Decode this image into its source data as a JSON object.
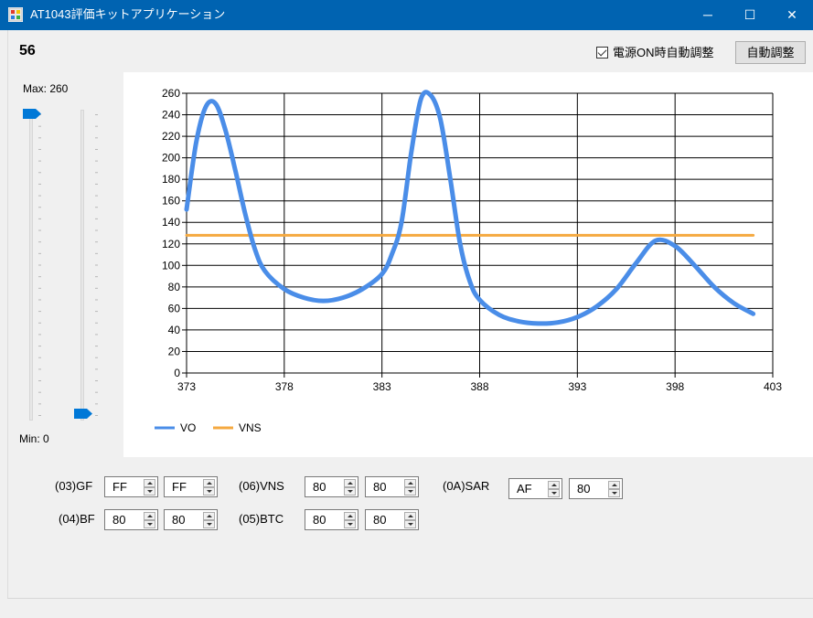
{
  "window": {
    "title": "AT1043評価キットアプリケーション",
    "minimize_glyph": "─",
    "maximize_glyph": "☐",
    "close_glyph": "✕"
  },
  "top_value": "56",
  "auto_adjust_on_power": {
    "label": "電源ON時自動調整",
    "checked": true
  },
  "auto_adjust_button": "自動調整",
  "slider_panel": {
    "max_label": "Max: 260",
    "min_label": "Min: 0",
    "upper_slider_value": 260,
    "lower_slider_value": 0
  },
  "chart_data": {
    "type": "line",
    "xlim": [
      373,
      403
    ],
    "ylim": [
      0,
      260
    ],
    "x_ticks": [
      "373",
      "378",
      "383",
      "388",
      "393",
      "398",
      "403"
    ],
    "y_ticks": [
      "0",
      "20",
      "40",
      "60",
      "80",
      "100",
      "120",
      "140",
      "160",
      "180",
      "200",
      "220",
      "240",
      "260"
    ],
    "grid": true,
    "legend_position": "bottom-left",
    "series": [
      {
        "name": "VO",
        "color": "#4a8de8",
        "x": [
          373,
          373.5,
          374,
          374.5,
          375,
          375.5,
          376,
          376.5,
          377,
          378,
          379,
          380,
          381,
          382,
          383,
          383.5,
          384,
          384.5,
          385,
          385.5,
          386,
          386.5,
          387,
          387.5,
          388,
          389,
          390,
          391,
          392,
          393,
          394,
          395,
          396,
          397,
          398,
          399,
          400,
          401,
          402
        ],
        "y": [
          152,
          215,
          248,
          250,
          225,
          188,
          148,
          115,
          95,
          78,
          70,
          67,
          70,
          78,
          92,
          110,
          140,
          205,
          255,
          258,
          235,
          180,
          120,
          85,
          68,
          54,
          48,
          46,
          47,
          52,
          62,
          78,
          102,
          123,
          118,
          100,
          80,
          65,
          55
        ]
      },
      {
        "name": "VNS",
        "color": "#f5a940",
        "x": [
          373,
          402
        ],
        "y": [
          128,
          128
        ]
      }
    ]
  },
  "registers": [
    {
      "label": "(03)GF",
      "values": [
        "FF",
        "FF"
      ]
    },
    {
      "label": "(06)VNS",
      "values": [
        "80",
        "80"
      ]
    },
    {
      "label": "(0A)SAR",
      "values": [
        "AF",
        "80"
      ]
    },
    {
      "label": "(04)BF",
      "values": [
        "80",
        "80"
      ]
    },
    {
      "label": "(05)BTC",
      "values": [
        "80",
        "80"
      ]
    }
  ]
}
